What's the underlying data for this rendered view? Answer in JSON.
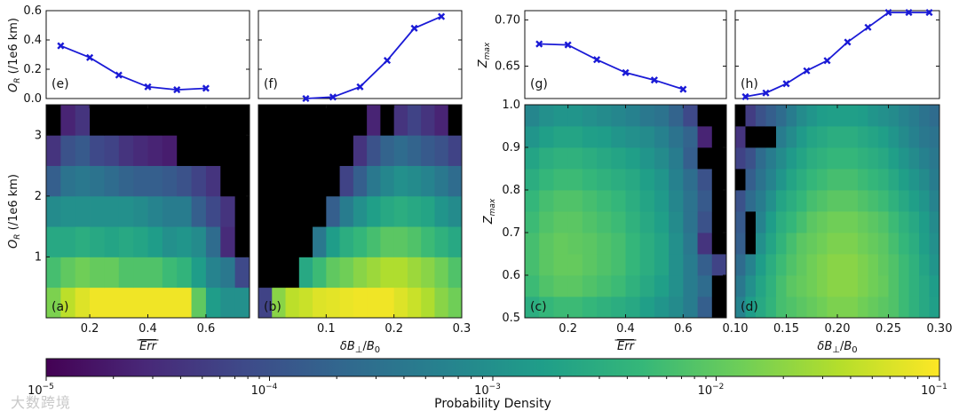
{
  "watermark": "大数跨境",
  "colormap": [
    "#440154",
    "#482878",
    "#3e4a89",
    "#31688e",
    "#26828e",
    "#1f9e89",
    "#35b779",
    "#6ece58",
    "#b5de2b",
    "#fde725"
  ],
  "masked_color": "#000000",
  "line_color": "#1a1ad6",
  "chart_data": [
    {
      "id": "e",
      "type": "line",
      "panel_label": "(e)",
      "ylabel": "O_R (/1e6 km)",
      "x": [
        0.1,
        0.2,
        0.3,
        0.4,
        0.5,
        0.6
      ],
      "y": [
        0.36,
        0.28,
        0.16,
        0.08,
        0.06,
        0.07
      ],
      "xlim": [
        0.05,
        0.75
      ],
      "ylim": [
        0,
        0.6
      ],
      "yticks": [
        0,
        0.2,
        0.4,
        0.6
      ],
      "ytick_labels": [
        "0.0",
        "0.2",
        "0.4",
        "0.6"
      ]
    },
    {
      "id": "f",
      "type": "line",
      "panel_label": "(f)",
      "x": [
        0.07,
        0.11,
        0.15,
        0.19,
        0.23,
        0.27
      ],
      "y": [
        0.0,
        0.01,
        0.08,
        0.26,
        0.48,
        0.56
      ],
      "xlim": [
        0.0,
        0.3
      ],
      "ylim": [
        0,
        0.6
      ],
      "yticks": [
        0,
        0.2,
        0.4,
        0.6
      ]
    },
    {
      "id": "g",
      "type": "line",
      "panel_label": "(g)",
      "ylabel": "Z_max",
      "x": [
        0.1,
        0.2,
        0.3,
        0.4,
        0.5,
        0.6
      ],
      "y": [
        0.674,
        0.673,
        0.657,
        0.643,
        0.635,
        0.625
      ],
      "xlim": [
        0.05,
        0.75
      ],
      "ylim": [
        0.615,
        0.71
      ],
      "yticks": [
        0.65,
        0.7
      ],
      "ytick_labels": [
        "0.65",
        "0.70"
      ]
    },
    {
      "id": "h",
      "type": "line",
      "panel_label": "(h)",
      "x": [
        0.11,
        0.13,
        0.15,
        0.17,
        0.19,
        0.21,
        0.23,
        0.25,
        0.27,
        0.29
      ],
      "y": [
        0.617,
        0.621,
        0.631,
        0.645,
        0.656,
        0.676,
        0.692,
        0.708,
        0.708,
        0.708
      ],
      "xlim": [
        0.1,
        0.3
      ],
      "ylim": [
        0.615,
        0.71
      ],
      "yticks": [
        0.65,
        0.7
      ]
    },
    {
      "id": "a",
      "type": "heatmap",
      "panel_label": "(a)",
      "ylabel": "O_R (/1e6 km)",
      "xlabel": "Err (overlined)",
      "xlim": [
        0.05,
        0.75
      ],
      "ylim": [
        0,
        3.5
      ],
      "xticks": [
        0.2,
        0.4,
        0.6
      ],
      "xtick_labels": [
        "0.2",
        "0.4",
        "0.6"
      ],
      "yticks": [
        1,
        2,
        3
      ],
      "ytick_labels": [
        "1",
        "2",
        "3"
      ],
      "x_edges": [
        0.05,
        0.1,
        0.15,
        0.2,
        0.25,
        0.3,
        0.35,
        0.4,
        0.45,
        0.5,
        0.55,
        0.6,
        0.65,
        0.7,
        0.75
      ],
      "y_edges": [
        0,
        0.5,
        1,
        1.5,
        2,
        2.5,
        3,
        3.5
      ],
      "density": [
        [
          0.8,
          0.9,
          0.95,
          0.98,
          0.98,
          0.98,
          0.98,
          0.98,
          0.98,
          0.98,
          0.75,
          0.55,
          0.5,
          0.5
        ],
        [
          0.7,
          0.75,
          0.78,
          0.76,
          0.76,
          0.72,
          0.72,
          0.72,
          0.68,
          0.65,
          0.55,
          0.45,
          0.4,
          0.22
        ],
        [
          0.6,
          0.6,
          0.62,
          0.6,
          0.58,
          0.6,
          0.58,
          0.55,
          0.5,
          0.52,
          0.48,
          0.35,
          0.12,
          null
        ],
        [
          0.48,
          0.5,
          0.5,
          0.5,
          0.5,
          0.5,
          0.48,
          0.45,
          0.42,
          0.42,
          0.3,
          0.22,
          0.15,
          null
        ],
        [
          0.3,
          0.38,
          0.4,
          0.38,
          0.35,
          0.32,
          0.3,
          0.3,
          0.28,
          0.25,
          0.2,
          0.15,
          null,
          null
        ],
        [
          0.15,
          0.25,
          0.28,
          0.22,
          0.2,
          0.15,
          0.12,
          0.1,
          0.08,
          null,
          null,
          null,
          null,
          null
        ],
        [
          null,
          0.1,
          0.15,
          null,
          null,
          null,
          null,
          null,
          null,
          null,
          null,
          null,
          null,
          null
        ]
      ]
    },
    {
      "id": "b",
      "type": "heatmap",
      "panel_label": "(b)",
      "xlabel": "δB⊥/B0",
      "xlim": [
        0.0,
        0.3
      ],
      "ylim": [
        0,
        3.5
      ],
      "xticks": [
        0.1,
        0.2,
        0.3
      ],
      "xtick_labels": [
        "0.1",
        "0.2",
        "0.3"
      ],
      "x_edges": [
        0.0,
        0.02,
        0.04,
        0.06,
        0.08,
        0.1,
        0.12,
        0.14,
        0.16,
        0.18,
        0.2,
        0.22,
        0.24,
        0.26,
        0.28,
        0.3
      ],
      "y_edges": [
        0,
        0.5,
        1,
        1.5,
        2,
        2.5,
        3,
        3.5
      ],
      "density": [
        [
          0.2,
          0.82,
          0.9,
          0.92,
          0.95,
          0.96,
          0.97,
          0.98,
          0.98,
          0.98,
          0.95,
          0.92,
          0.88,
          0.82,
          0.78
        ],
        [
          null,
          null,
          null,
          0.6,
          0.68,
          0.75,
          0.78,
          0.82,
          0.85,
          0.88,
          0.88,
          0.85,
          0.82,
          0.78,
          0.72
        ],
        [
          null,
          null,
          null,
          null,
          0.4,
          0.55,
          0.62,
          0.66,
          0.7,
          0.74,
          0.74,
          0.72,
          0.68,
          0.64,
          0.6
        ],
        [
          null,
          null,
          null,
          null,
          null,
          0.3,
          0.42,
          0.5,
          0.56,
          0.6,
          0.62,
          0.6,
          0.58,
          0.52,
          0.48
        ],
        [
          null,
          null,
          null,
          null,
          null,
          null,
          0.2,
          0.3,
          0.4,
          0.46,
          0.5,
          0.48,
          0.45,
          0.4,
          0.35
        ],
        [
          null,
          null,
          null,
          null,
          null,
          null,
          null,
          0.15,
          0.25,
          0.32,
          0.35,
          0.32,
          0.28,
          0.25,
          0.2
        ],
        [
          null,
          null,
          null,
          null,
          null,
          null,
          null,
          null,
          0.1,
          null,
          0.15,
          0.2,
          0.15,
          0.1,
          null
        ]
      ]
    },
    {
      "id": "c",
      "type": "heatmap",
      "panel_label": "(c)",
      "ylabel": "Z_max",
      "xlabel": "Err (overlined)",
      "xlim": [
        0.05,
        0.75
      ],
      "ylim": [
        0.5,
        1.0
      ],
      "xticks": [
        0.2,
        0.4,
        0.6
      ],
      "xtick_labels": [
        "0.2",
        "0.4",
        "0.6"
      ],
      "yticks": [
        0.5,
        0.6,
        0.7,
        0.8,
        0.9,
        1.0
      ],
      "ytick_labels": [
        "0.5",
        "0.6",
        "0.7",
        "0.8",
        "0.9",
        "1.0"
      ],
      "x_edges": [
        0.05,
        0.1,
        0.15,
        0.2,
        0.25,
        0.3,
        0.35,
        0.4,
        0.45,
        0.5,
        0.55,
        0.6,
        0.65,
        0.7,
        0.75
      ],
      "y_edges": [
        0.5,
        0.55,
        0.6,
        0.65,
        0.7,
        0.75,
        0.8,
        0.85,
        0.9,
        0.95,
        1.0
      ],
      "density": [
        [
          0.62,
          0.66,
          0.68,
          0.68,
          0.66,
          0.64,
          0.62,
          0.6,
          0.56,
          0.52,
          0.48,
          0.42,
          0.3,
          null
        ],
        [
          0.68,
          0.72,
          0.74,
          0.74,
          0.72,
          0.7,
          0.68,
          0.64,
          0.6,
          0.56,
          0.5,
          0.42,
          0.35,
          null
        ],
        [
          0.7,
          0.74,
          0.76,
          0.76,
          0.74,
          0.72,
          0.7,
          0.66,
          0.62,
          0.58,
          0.5,
          0.42,
          0.3,
          0.2
        ],
        [
          0.7,
          0.74,
          0.76,
          0.75,
          0.74,
          0.72,
          0.7,
          0.66,
          0.62,
          0.58,
          0.5,
          0.4,
          0.15,
          null
        ],
        [
          0.68,
          0.72,
          0.74,
          0.74,
          0.72,
          0.7,
          0.68,
          0.64,
          0.6,
          0.56,
          0.48,
          0.38,
          0.25,
          null
        ],
        [
          0.66,
          0.7,
          0.72,
          0.72,
          0.7,
          0.68,
          0.66,
          0.62,
          0.58,
          0.54,
          0.46,
          0.38,
          0.28,
          null
        ],
        [
          0.62,
          0.66,
          0.68,
          0.68,
          0.66,
          0.64,
          0.62,
          0.6,
          0.56,
          0.52,
          0.44,
          0.36,
          0.25,
          null
        ],
        [
          0.58,
          0.62,
          0.64,
          0.64,
          0.62,
          0.6,
          0.58,
          0.56,
          0.52,
          0.48,
          0.42,
          0.3,
          null,
          null
        ],
        [
          0.52,
          0.56,
          0.58,
          0.58,
          0.56,
          0.55,
          0.52,
          0.5,
          0.48,
          0.44,
          0.38,
          0.32,
          0.1,
          null
        ],
        [
          0.46,
          0.5,
          0.52,
          0.52,
          0.5,
          0.48,
          0.46,
          0.44,
          0.4,
          0.38,
          0.32,
          0.22,
          null,
          null
        ]
      ]
    },
    {
      "id": "d",
      "type": "heatmap",
      "panel_label": "(d)",
      "xlabel": "δB⊥/B0",
      "xlim": [
        0.1,
        0.3
      ],
      "ylim": [
        0.5,
        1.0
      ],
      "xticks": [
        0.1,
        0.15,
        0.2,
        0.25,
        0.3
      ],
      "xtick_labels": [
        "0.10",
        "0.15",
        "0.20",
        "0.25",
        "0.30"
      ],
      "x_edges": [
        0.1,
        0.11,
        0.12,
        0.13,
        0.14,
        0.15,
        0.16,
        0.17,
        0.18,
        0.19,
        0.2,
        0.21,
        0.22,
        0.23,
        0.24,
        0.25,
        0.26,
        0.27,
        0.28,
        0.29,
        0.3
      ],
      "y_edges": [
        0.5,
        0.55,
        0.6,
        0.65,
        0.7,
        0.75,
        0.8,
        0.85,
        0.9,
        0.95,
        1.0
      ],
      "density": [
        [
          0.45,
          0.55,
          0.6,
          0.65,
          0.7,
          0.72,
          0.74,
          0.76,
          0.78,
          0.8,
          0.8,
          0.8,
          0.78,
          0.76,
          0.74,
          0.72,
          0.68,
          0.64,
          0.6,
          0.56
        ],
        [
          0.4,
          0.5,
          0.58,
          0.64,
          0.7,
          0.74,
          0.76,
          0.78,
          0.8,
          0.82,
          0.82,
          0.82,
          0.8,
          0.78,
          0.76,
          0.72,
          0.68,
          0.64,
          0.6,
          0.55
        ],
        [
          0.35,
          0.45,
          0.55,
          0.62,
          0.68,
          0.72,
          0.75,
          0.78,
          0.8,
          0.82,
          0.82,
          0.82,
          0.8,
          0.78,
          0.75,
          0.72,
          0.68,
          0.64,
          0.58,
          0.52
        ],
        [
          0.3,
          null,
          0.5,
          0.58,
          0.65,
          0.7,
          0.74,
          0.76,
          0.78,
          0.8,
          0.8,
          0.8,
          0.78,
          0.76,
          0.74,
          0.7,
          0.66,
          0.62,
          0.56,
          0.5
        ],
        [
          0.28,
          null,
          0.45,
          0.55,
          0.62,
          0.66,
          0.7,
          0.74,
          0.76,
          0.78,
          0.78,
          0.78,
          0.76,
          0.74,
          0.72,
          0.68,
          0.64,
          0.6,
          0.55,
          0.48
        ],
        [
          0.25,
          0.35,
          0.42,
          0.5,
          0.58,
          0.62,
          0.66,
          0.7,
          0.72,
          0.74,
          0.74,
          0.74,
          0.72,
          0.7,
          0.68,
          0.64,
          0.6,
          0.56,
          0.52,
          0.45
        ],
        [
          null,
          0.3,
          0.38,
          0.45,
          0.52,
          0.58,
          0.62,
          0.66,
          0.68,
          0.7,
          0.7,
          0.7,
          0.68,
          0.66,
          0.64,
          0.6,
          0.56,
          0.52,
          0.48,
          0.42
        ],
        [
          0.2,
          0.25,
          0.35,
          0.42,
          0.48,
          0.54,
          0.58,
          0.62,
          0.64,
          0.66,
          0.66,
          0.66,
          0.64,
          0.62,
          0.6,
          0.56,
          0.52,
          0.48,
          0.44,
          0.4
        ],
        [
          0.15,
          null,
          null,
          null,
          0.42,
          0.48,
          0.54,
          0.58,
          0.6,
          0.62,
          0.62,
          0.62,
          0.6,
          0.58,
          0.56,
          0.52,
          0.48,
          0.44,
          0.4,
          0.38
        ],
        [
          null,
          0.18,
          0.25,
          0.3,
          0.35,
          0.42,
          0.48,
          0.52,
          0.55,
          0.56,
          0.56,
          0.56,
          0.55,
          0.52,
          0.5,
          0.48,
          0.45,
          0.42,
          0.38,
          0.35
        ]
      ]
    },
    {
      "id": "colorbar",
      "type": "colorbar",
      "orientation": "horizontal",
      "scale": "log",
      "range": [
        1e-05,
        0.1
      ],
      "label": "Probability Density",
      "ticks": [
        {
          "mant": "10",
          "exp": "−5"
        },
        {
          "mant": "10",
          "exp": "−4"
        },
        {
          "mant": "10",
          "exp": "−3"
        },
        {
          "mant": "10",
          "exp": "−2"
        },
        {
          "mant": "10",
          "exp": "−1"
        }
      ]
    }
  ]
}
